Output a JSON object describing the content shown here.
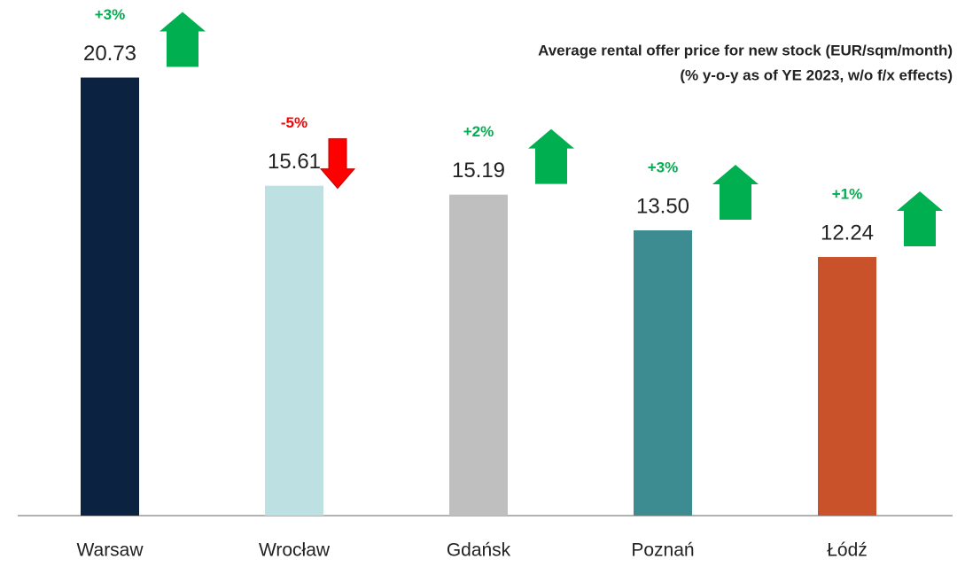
{
  "chart_data": {
    "type": "bar",
    "title": "Average rental offer price for new stock (EUR/sqm/month)",
    "subtitle": "(% y-o-y as of YE 2023, w/o f/x effects)",
    "categories": [
      "Warsaw",
      "Wrocław",
      "Gdańsk",
      "Poznań",
      "Łódź"
    ],
    "values": [
      20.73,
      15.61,
      15.19,
      13.5,
      12.24
    ],
    "value_labels": [
      "20.73",
      "15.61",
      "15.19",
      "13.50",
      "12.24"
    ],
    "colors": [
      "#0b2341",
      "#bde0e3",
      "#bfbfbf",
      "#3c8c91",
      "#c9522a"
    ],
    "changes": [
      3,
      -5,
      2,
      3,
      1
    ],
    "change_labels": [
      "+3%",
      "-5%",
      "+2%",
      "+3%",
      "+1%"
    ],
    "up_color": "#00b050",
    "down_color": "#ff0000",
    "ylim": [
      0,
      24.4
    ]
  }
}
